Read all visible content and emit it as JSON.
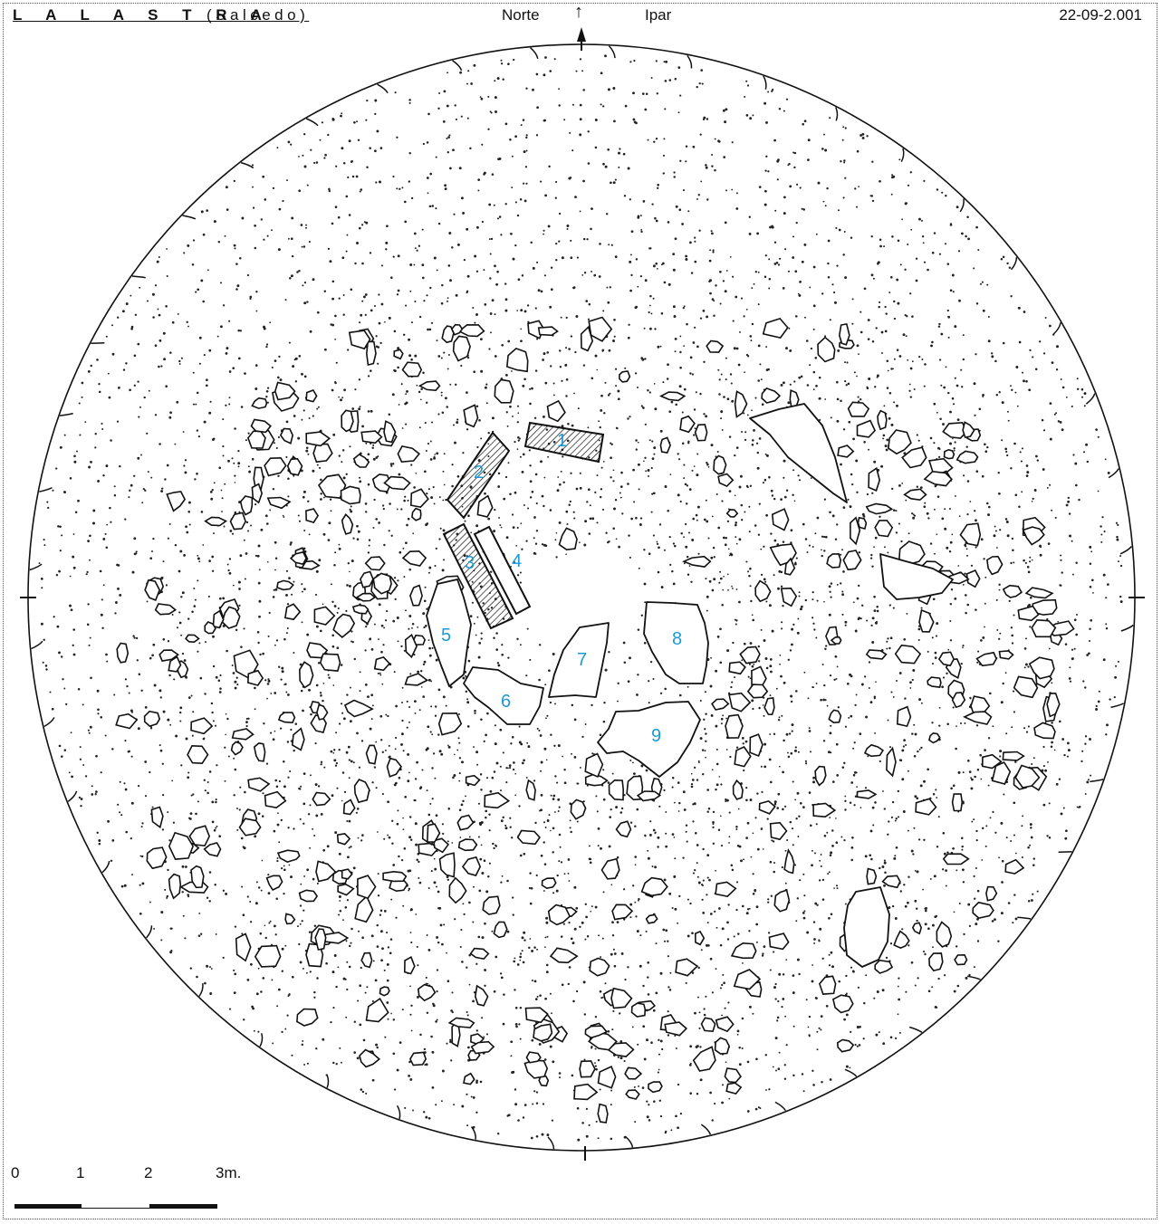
{
  "header": {
    "title": "L A   L A S T R A",
    "subtitle": "(Salcedo)",
    "north_label": "Norte",
    "north_arrow": "↑",
    "ipar_label": "Ipar",
    "date": "22-09-2.001"
  },
  "stones": {
    "labels": [
      "1",
      "2",
      "3",
      "4",
      "5",
      "6",
      "7",
      "8",
      "9"
    ],
    "label_color": "#1b9ad6"
  },
  "scale": {
    "ticks": [
      "0",
      "1",
      "2",
      "3m."
    ]
  },
  "icons": {
    "north_marker": "north-arrow-icon"
  }
}
